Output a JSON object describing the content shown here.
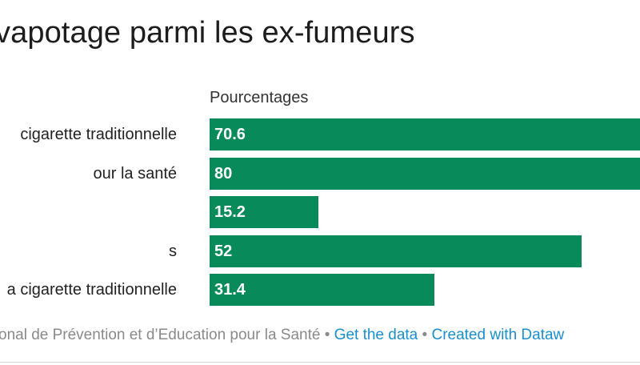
{
  "title": "vapotage parmi les ex-fumeurs",
  "column_header": "Pourcentages",
  "chart_data": {
    "type": "bar",
    "orientation": "horizontal",
    "title": "vapotage parmi les ex-fumeurs",
    "value_label": "Pourcentages",
    "categories": [
      "cigarette traditionnelle",
      "our la santé",
      "",
      "s",
      "a cigarette traditionnelle"
    ],
    "values": [
      70.6,
      80,
      15.2,
      52,
      31.4
    ],
    "value_labels": [
      "70.6",
      "80",
      "15.2",
      "52",
      "31.4"
    ],
    "xlim": [
      0,
      60.5
    ],
    "bar_color": "#088a5b",
    "value_text_color": "#ffffff"
  },
  "footer": {
    "source_text": "onal de Prévention et d’Education pour la Santé",
    "separator": " • ",
    "get_data_link": "Get the data",
    "created_link": "Created with Dataw"
  },
  "colors": {
    "bar": "#088a5b",
    "link": "#1a8fce",
    "footer_text": "#8a8a8a"
  }
}
